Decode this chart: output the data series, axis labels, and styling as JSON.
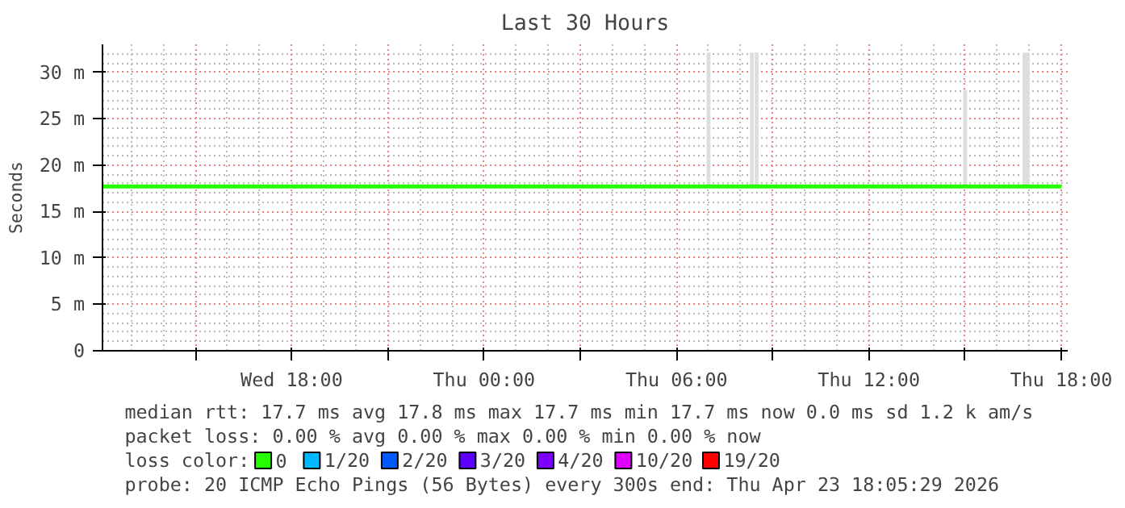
{
  "chart_data": {
    "type": "line",
    "title": "Last 30 Hours",
    "ylabel": "Seconds",
    "xlim": [
      "2026-04-22T12:06",
      "2026-04-23T18:12"
    ],
    "ylim": [
      0,
      33
    ],
    "xticks": [
      {
        "value": "2026-04-22T15:00",
        "label": null
      },
      {
        "value": "2026-04-22T18:00",
        "label": "Wed 18:00"
      },
      {
        "value": "2026-04-22T21:00",
        "label": null
      },
      {
        "value": "2026-04-23T00:00",
        "label": "Thu 00:00"
      },
      {
        "value": "2026-04-23T03:00",
        "label": null
      },
      {
        "value": "2026-04-23T06:00",
        "label": "Thu 06:00"
      },
      {
        "value": "2026-04-23T09:00",
        "label": null
      },
      {
        "value": "2026-04-23T12:00",
        "label": "Thu 12:00"
      },
      {
        "value": "2026-04-23T15:00",
        "label": null
      },
      {
        "value": "2026-04-23T18:00",
        "label": "Thu 18:00"
      }
    ],
    "yticks": [
      0,
      {
        "value": 5,
        "label": "5 m"
      },
      {
        "value": 10,
        "label": "10 m"
      },
      {
        "value": 15,
        "label": "15 m"
      },
      {
        "value": 20,
        "label": "20 m"
      },
      {
        "value": 25,
        "label": "25 m"
      },
      {
        "value": 30,
        "label": "30 m"
      }
    ],
    "grid": true,
    "legend": "bottom",
    "legend_title": "loss color:",
    "series": [
      {
        "type": "bar",
        "color": "#dddddd",
        "x": [
          "2026-04-23T07:00",
          "2026-04-23T08:21",
          "2026-04-23T08:30",
          "2026-04-23T15:00",
          "2026-04-23T16:51",
          "2026-04-23T16:57"
        ],
        "base": [
          17.7,
          17.7,
          17.7,
          17.7,
          17.7,
          17.7
        ],
        "values": [
          14.4,
          14.4,
          14.4,
          10.4,
          14.4,
          14.4
        ]
      },
      {
        "name": "0",
        "color": "#26ff00",
        "x": [
          "2026-04-22T12:06",
          "2026-04-23T18:00"
        ],
        "values": [
          17.7,
          17.7
        ]
      },
      {
        "type": "line",
        "name": "1/20",
        "color": "#00b8ff"
      },
      {
        "type": "line",
        "name": "2/20",
        "color": "#0059ff"
      },
      {
        "type": "line",
        "name": "3/20",
        "color": "#5e00ff"
      },
      {
        "type": "line",
        "name": "4/20",
        "color": "#7e00ff"
      },
      {
        "type": "line",
        "name": "10/20",
        "color": "#dd00ff"
      },
      {
        "type": "line",
        "name": "19/20",
        "color": "#ff0000"
      }
    ],
    "annotations": [
      "median rtt:  17.7 ms avg  17.8 ms max  17.7 ms min  17.7 ms now  0.0 ms sd  1.2 k am/s",
      "packet loss: 0.00 % avg  0.00 % max  0.00 % min  0.00 % now",
      "probe:       20 ICMP Echo Pings (56 Bytes) every 300s            end: Thu Apr 23 18:05:29 2026"
    ]
  }
}
